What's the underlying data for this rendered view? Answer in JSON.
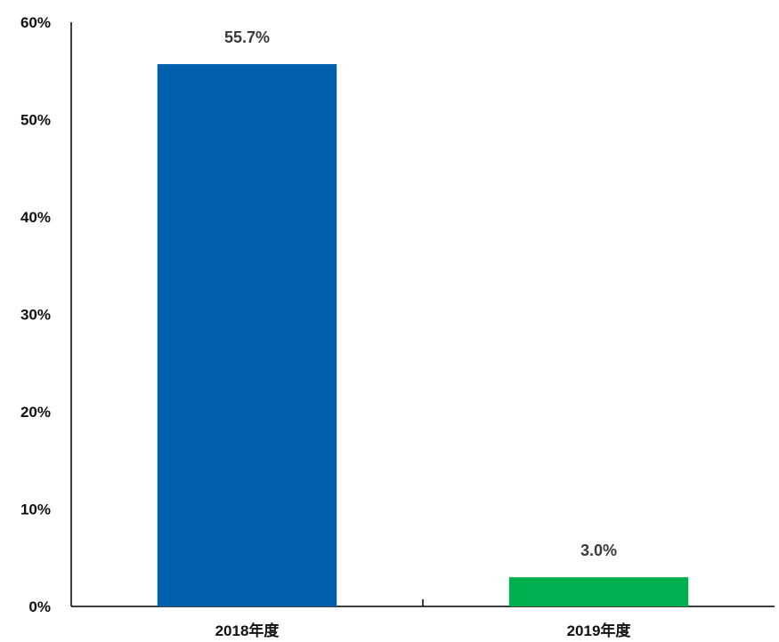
{
  "chart_data": {
    "type": "bar",
    "categories": [
      "2018年度",
      "2019年度"
    ],
    "values": [
      55.7,
      3.0
    ],
    "data_labels": [
      "55.7%",
      "3.0%"
    ],
    "bar_colors": [
      "#0060AE",
      "#00B050"
    ],
    "title": "",
    "xlabel": "",
    "ylabel": "",
    "ylim": [
      0,
      60
    ],
    "yticks": [
      0,
      10,
      20,
      30,
      40,
      50,
      60
    ],
    "ytick_labels": [
      "0%",
      "10%",
      "20%",
      "30%",
      "40%",
      "50%",
      "60%"
    ],
    "grid": false,
    "legend": "none"
  }
}
